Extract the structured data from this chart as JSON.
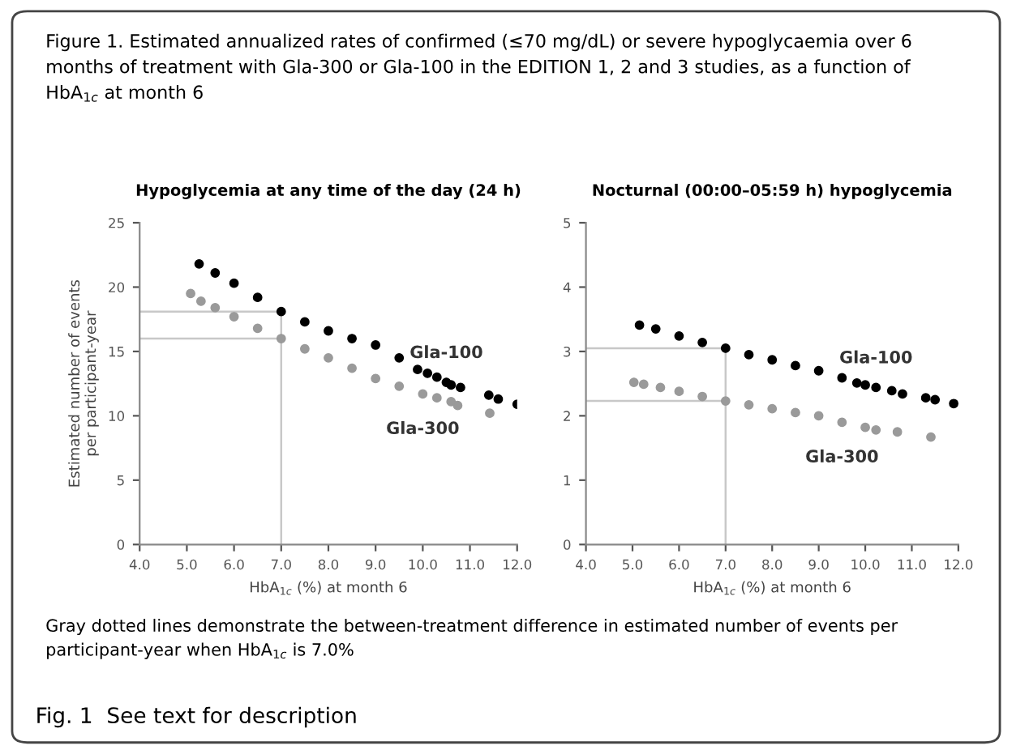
{
  "chart_data": [
    {
      "type": "scatter",
      "title": "Hypoglycemia at any time of the day (24 h)",
      "xlabel": "HbA$_{1c}$ (%) at month 6",
      "ylabel": "Estimated number of events\nper participant-year",
      "xlim": [
        4.0,
        12.0
      ],
      "xticks": [
        {
          "value": 4,
          "label": "4.0"
        },
        {
          "value": 5,
          "label": "5.0"
        },
        {
          "value": 6,
          "label": "6.0"
        },
        {
          "value": 7,
          "label": "7.0"
        },
        {
          "value": 8,
          "label": "8.0"
        },
        {
          "value": 9,
          "label": "9.0"
        },
        {
          "value": 10,
          "label": "10.0"
        },
        {
          "value": 11,
          "label": "11.0"
        },
        {
          "value": 12,
          "label": "12.0"
        }
      ],
      "ylim": [
        0,
        25
      ],
      "yticks": [
        0,
        5,
        10,
        15,
        20,
        25
      ],
      "grid": false,
      "marker": "circle",
      "series": [
        {
          "name": "Gla-100",
          "color": "#000000",
          "x": [
            5.26,
            5.6,
            6.0,
            6.5,
            7.0,
            7.5,
            8.0,
            8.5,
            9.0,
            9.5,
            9.89,
            10.1,
            10.3,
            10.5,
            10.6,
            10.8,
            11.4,
            11.6,
            12.0
          ],
          "values": [
            21.8,
            21.1,
            20.3,
            19.2,
            18.1,
            17.3,
            16.6,
            16.0,
            15.5,
            14.5,
            13.6,
            13.3,
            13.0,
            12.6,
            12.4,
            12.2,
            11.6,
            11.3,
            10.9
          ]
        },
        {
          "name": "Gla-300",
          "color": "#9a9a9a",
          "x": [
            5.08,
            5.3,
            5.6,
            6.0,
            6.5,
            7.0,
            7.5,
            8.0,
            8.5,
            9.0,
            9.5,
            10.0,
            10.3,
            10.6,
            10.74,
            11.42
          ],
          "values": [
            19.5,
            18.9,
            18.4,
            17.7,
            16.8,
            16.0,
            15.2,
            14.5,
            13.7,
            12.9,
            12.3,
            11.7,
            11.4,
            11.1,
            10.8,
            10.2
          ]
        }
      ],
      "ref_lines": [
        {
          "axis": "x",
          "value": 7.0,
          "color": "#c8c8c8"
        },
        {
          "axis": "y",
          "value": 18.1,
          "color": "#c8c8c8"
        },
        {
          "axis": "y",
          "value": 16.0,
          "color": "#c8c8c8"
        }
      ],
      "annotations": [
        "Figure 1. Estimated annualized rates of confirmed (≤70 mg/dL) or severe hypoglycaemia over 6 months of treatment with Gla-300 or Gla-100 in the EDITION 1, 2 and 3 studies, as a function of HbA$_{1c}$ at month 6"
      ]
    },
    {
      "type": "scatter",
      "title": "Nocturnal (00:00–05:59 h) hypoglycemia",
      "xlabel": "HbA$_{1c}$ (%) at month 6",
      "xlim": [
        4.0,
        12.0
      ],
      "xticks": [
        {
          "value": 4,
          "label": "4.0"
        },
        {
          "value": 5,
          "label": "5.0"
        },
        {
          "value": 6,
          "label": "6.0"
        },
        {
          "value": 7,
          "label": "7.0"
        },
        {
          "value": 8,
          "label": "8.0"
        },
        {
          "value": 9,
          "label": "9.0"
        },
        {
          "value": 10,
          "label": "10.0"
        },
        {
          "value": 11,
          "label": "11.0"
        },
        {
          "value": 12,
          "label": "12.0"
        }
      ],
      "ylim": [
        0,
        5
      ],
      "yticks": [
        0,
        1,
        2,
        3,
        4,
        5
      ],
      "grid": false,
      "marker": "circle",
      "series": [
        {
          "name": "Gla-100",
          "color": "#000000",
          "x": [
            5.15,
            5.5,
            6.0,
            6.5,
            7.0,
            7.5,
            8.0,
            8.5,
            9.0,
            9.5,
            9.82,
            10.0,
            10.23,
            10.57,
            10.8,
            11.3,
            11.5,
            11.9
          ],
          "values": [
            3.41,
            3.35,
            3.24,
            3.14,
            3.05,
            2.95,
            2.87,
            2.78,
            2.7,
            2.59,
            2.51,
            2.48,
            2.44,
            2.39,
            2.34,
            2.28,
            2.25,
            2.19
          ]
        },
        {
          "name": "Gla-300",
          "color": "#9a9a9a",
          "x": [
            5.03,
            5.24,
            5.6,
            6.0,
            6.5,
            7.0,
            7.5,
            8.0,
            8.5,
            9.0,
            9.5,
            10.0,
            10.23,
            10.69,
            11.41
          ],
          "values": [
            2.52,
            2.49,
            2.44,
            2.38,
            2.3,
            2.23,
            2.17,
            2.11,
            2.05,
            2.0,
            1.9,
            1.82,
            1.78,
            1.75,
            1.67
          ]
        }
      ],
      "ref_lines": [
        {
          "axis": "x",
          "value": 7.0,
          "color": "#c8c8c8"
        },
        {
          "axis": "y",
          "value": 3.05,
          "color": "#c8c8c8"
        },
        {
          "axis": "y",
          "value": 2.23,
          "color": "#c8c8c8"
        }
      ],
      "annotations": [
        "Gray dotted lines demonstrate the between-treatment difference in estimated number of events per participant-year when HbA$_{1c}$ is 7.0%",
        "Fig. 1  See text for description"
      ]
    }
  ]
}
